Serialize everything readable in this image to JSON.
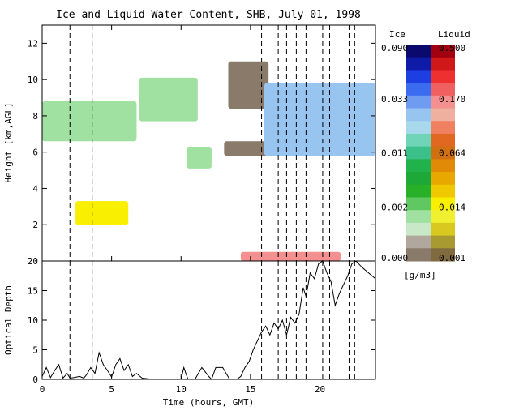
{
  "chart_data": [
    {
      "type": "heatmap",
      "title": "Ice and Liquid Water Content, SHB, July 01, 1998",
      "xlabel": "",
      "ylabel": "Height [km,AGL]",
      "xlim": [
        0,
        24
      ],
      "ylim": [
        0,
        13
      ],
      "yticks": [
        2,
        4,
        6,
        8,
        10,
        12
      ],
      "vertical_markers_hours": [
        2.0,
        3.6,
        15.8,
        17.0,
        17.6,
        18.3,
        19.0,
        20.2,
        20.7,
        22.1,
        22.5
      ],
      "cloud_regions": [
        {
          "phase": "ice",
          "t_start": 0.0,
          "t_end": 6.8,
          "z_bottom": 6.6,
          "z_top": 8.8,
          "level": "0.002"
        },
        {
          "phase": "ice",
          "t_start": 7.0,
          "t_end": 11.2,
          "z_bottom": 7.7,
          "z_top": 10.1,
          "level": "0.002"
        },
        {
          "phase": "ice",
          "t_start": 10.4,
          "t_end": 12.2,
          "z_bottom": 5.1,
          "z_top": 6.3,
          "level": "0.002"
        },
        {
          "phase": "ice",
          "t_start": 13.1,
          "t_end": 16.7,
          "z_bottom": 5.8,
          "z_top": 6.6,
          "level": "0.000"
        },
        {
          "phase": "ice",
          "t_start": 13.4,
          "t_end": 16.3,
          "z_bottom": 8.4,
          "z_top": 11.0,
          "level": "0.000"
        },
        {
          "phase": "ice",
          "t_start": 16.0,
          "t_end": 24.0,
          "z_bottom": 5.8,
          "z_top": 9.8,
          "level": "0.033"
        },
        {
          "phase": "liquid",
          "t_start": 2.4,
          "t_end": 6.2,
          "z_bottom": 2.0,
          "z_top": 3.3,
          "level": "0.014"
        },
        {
          "phase": "liquid",
          "t_start": 14.3,
          "t_end": 21.5,
          "z_bottom": 0.0,
          "z_top": 0.5,
          "level": "0.170"
        }
      ],
      "colorbar": {
        "ice_label": "Ice",
        "liquid_label": "Liquid",
        "units": "[g/m3]",
        "ice_ticks": [
          "0.090",
          "0.033",
          "0.011",
          "0.002",
          "0.000"
        ],
        "liquid_ticks": [
          "0.500",
          "0.170",
          "0.064",
          "0.014",
          "0.001"
        ],
        "ice_colors": [
          "#0a0a6e",
          "#0e1aa8",
          "#1d3ee0",
          "#3b6cf0",
          "#6f9cf0",
          "#98c4f0",
          "#a8d8ec",
          "#70d4b8",
          "#3cc08a",
          "#21b24c",
          "#1ea838",
          "#28b028",
          "#60c860",
          "#a0e0a0",
          "#c8e8c8",
          "#b0a89c",
          "#8a7a6a"
        ],
        "liquid_colors": [
          "#a00010",
          "#d01818",
          "#ee3030",
          "#f06060",
          "#f49090",
          "#f0b0a0",
          "#f08060",
          "#e06820",
          "#d07010",
          "#e08a08",
          "#e8a800",
          "#f0c800",
          "#f8f000",
          "#f0f030",
          "#d8c820",
          "#a89a30",
          "#806a40"
        ]
      }
    },
    {
      "type": "line",
      "title": "",
      "xlabel": "Time (hours, GMT)",
      "ylabel": "Optical Depth",
      "xlim": [
        0,
        24
      ],
      "ylim": [
        0,
        20
      ],
      "xticks": [
        0,
        5,
        10,
        15,
        20
      ],
      "yticks": [
        0,
        5,
        10,
        15,
        20
      ],
      "series": [
        {
          "x": [
            0.0,
            0.3,
            0.6,
            0.9,
            1.2,
            1.5,
            1.8,
            2.0,
            2.3,
            2.7,
            3.0,
            3.2,
            3.5,
            3.8,
            4.1,
            4.4,
            4.7,
            5.0,
            5.3,
            5.6,
            5.9,
            6.2,
            6.5,
            6.8,
            7.2,
            8.0,
            9.0,
            10.0,
            10.2,
            10.5,
            11.0,
            11.5,
            12.0,
            12.2,
            12.5,
            13.0,
            13.5,
            14.0,
            14.3,
            14.6,
            14.9,
            15.2,
            15.5,
            15.8,
            16.1,
            16.4,
            16.7,
            17.0,
            17.3,
            17.6,
            17.9,
            18.2,
            18.5,
            18.8,
            19.0,
            19.3,
            19.6,
            19.9,
            20.2,
            20.5,
            20.8,
            21.1,
            21.4,
            21.7,
            22.0,
            22.3,
            22.6,
            23.0,
            23.5,
            24.0
          ],
          "y": [
            0.5,
            2.0,
            0.3,
            1.5,
            2.5,
            0.2,
            1.0,
            0.2,
            0.3,
            0.5,
            0.2,
            0.8,
            2.0,
            1.0,
            4.5,
            2.5,
            1.5,
            0.4,
            2.5,
            3.5,
            1.5,
            2.5,
            0.5,
            1.0,
            0.2,
            0.0,
            0.0,
            0.0,
            2.0,
            0.0,
            0.0,
            2.0,
            0.5,
            0.0,
            2.0,
            2.0,
            0.0,
            0.0,
            0.5,
            2.0,
            3.0,
            5.0,
            6.5,
            8.0,
            9.0,
            7.5,
            9.5,
            8.5,
            10.0,
            7.5,
            10.5,
            9.5,
            11.0,
            15.5,
            14.0,
            18.0,
            17.0,
            19.5,
            20.5,
            18.0,
            16.5,
            12.5,
            14.5,
            16.0,
            17.5,
            19.5,
            20.0,
            19.0,
            18.0,
            17.0
          ]
        }
      ],
      "vertical_markers_hours": [
        2.0,
        3.6,
        15.8,
        17.0,
        17.6,
        18.3,
        19.0,
        20.2,
        20.7,
        22.1,
        22.5
      ]
    }
  ]
}
